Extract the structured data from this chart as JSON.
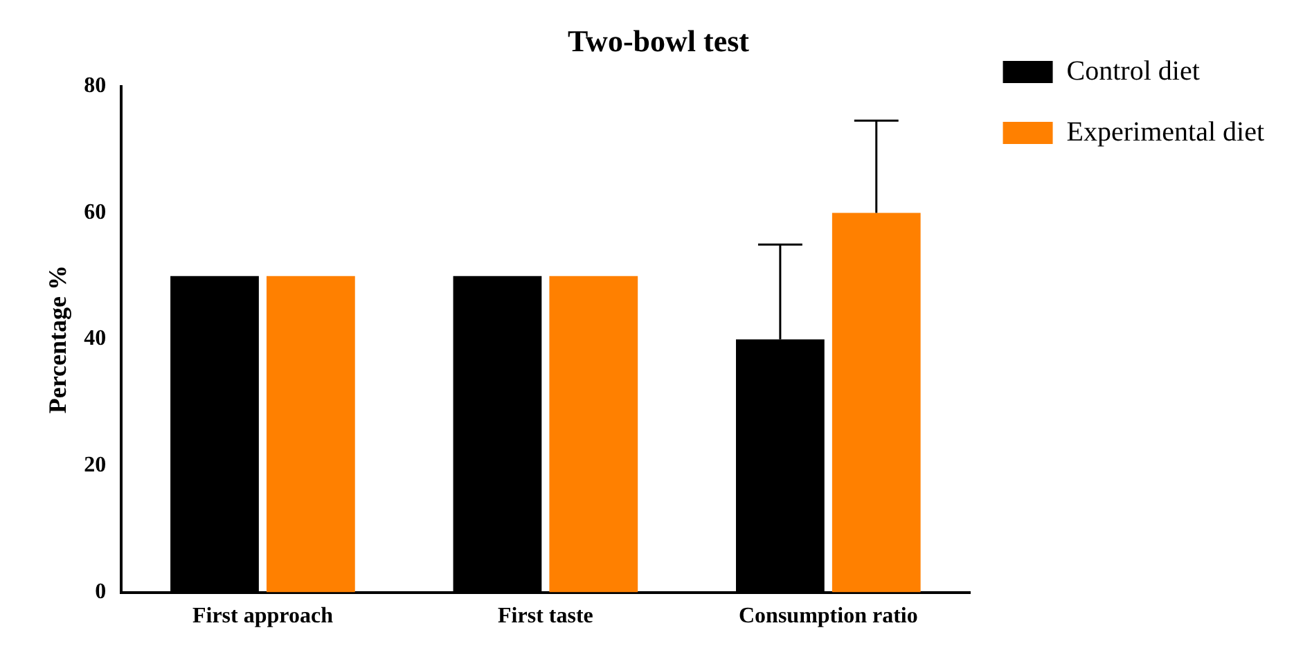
{
  "chart_data": {
    "type": "bar",
    "title": "Two-bowl test",
    "ylabel": "Percentage %",
    "categories": [
      "First approach",
      "First taste",
      "Consumption ratio"
    ],
    "series": [
      {
        "name": "Control diet",
        "color": "#000000",
        "values": [
          50,
          50,
          40
        ],
        "errors": [
          null,
          null,
          [
            40,
            55
          ]
        ]
      },
      {
        "name": "Experimental diet",
        "color": "#ff8000",
        "values": [
          50,
          50,
          60
        ],
        "errors": [
          null,
          null,
          [
            60,
            74.6
          ]
        ]
      }
    ],
    "ylim": [
      0,
      80
    ],
    "yticks": [
      0,
      20,
      40,
      60,
      80
    ],
    "grid": false,
    "legend": "top right"
  }
}
